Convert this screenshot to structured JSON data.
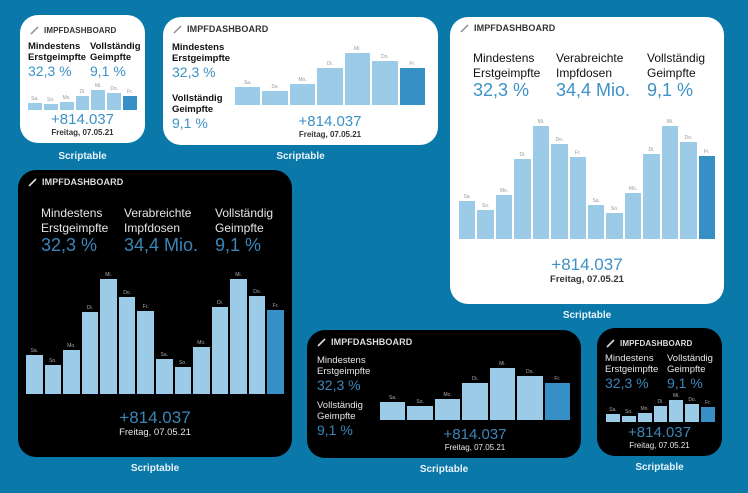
{
  "app_label": "Scriptable",
  "widget_title": "IMPFDASHBOARD",
  "stats": {
    "first_dose": {
      "label_line1": "Mindestens",
      "label_line2": "Erstgeimpfte",
      "value": "32,3 %"
    },
    "doses": {
      "label_line1": "Verabreichte",
      "label_line2": "Impfdosen",
      "value": "34,4 Mio."
    },
    "fully": {
      "label_line1": "Vollständig",
      "label_line2": "Geimpfte",
      "value": "9,1 %"
    }
  },
  "daily_delta": "+814.037",
  "date": "Freitag, 07.05.21",
  "colors": {
    "background": "#0a78a8",
    "accent": "#3c92c6",
    "bar": "#9ccbe8",
    "bar_current": "#3690c6"
  },
  "chart_data": {
    "type": "bar",
    "title": "",
    "xlabel": "",
    "ylabel": "",
    "categories_7": [
      "Sa.",
      "So.",
      "Mo.",
      "Di.",
      "Mi.",
      "Do.",
      "Fr."
    ],
    "values_7": [
      0.31,
      0.24,
      0.36,
      0.63,
      0.88,
      0.74,
      0.62
    ],
    "categories_14": [
      "Sa.",
      "So.",
      "Mo.",
      "Di.",
      "Mi.",
      "Do.",
      "Fr.",
      "Sa.",
      "So.",
      "Mo.",
      "Di.",
      "Mi.",
      "Do.",
      "Fr."
    ],
    "values_14": [
      0.33,
      0.25,
      0.38,
      0.7,
      0.98,
      0.83,
      0.71,
      0.3,
      0.23,
      0.4,
      0.74,
      0.98,
      0.84,
      0.72
    ],
    "highlight": "last",
    "ylim": [
      0,
      1
    ]
  }
}
